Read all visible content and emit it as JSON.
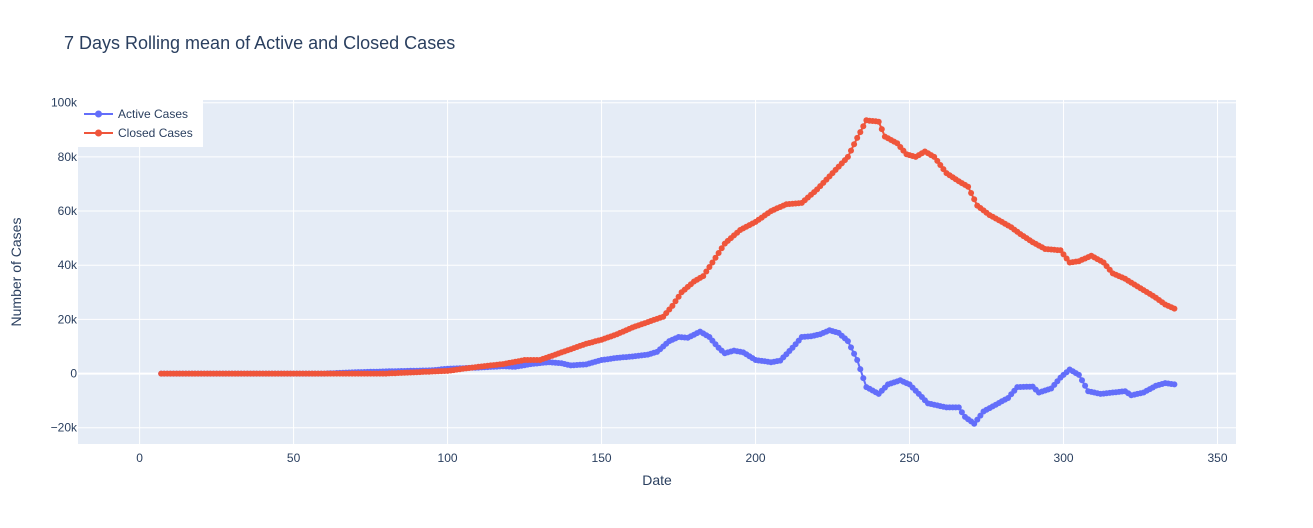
{
  "chart_data": {
    "type": "line",
    "title": "7 Days Rolling mean of Active and Closed Cases",
    "xlabel": "Date",
    "ylabel": "Number of Cases",
    "xlim": [
      -20,
      356
    ],
    "ylim": [
      -26000,
      101000
    ],
    "x_ticks": [
      0,
      50,
      100,
      150,
      200,
      250,
      300,
      350
    ],
    "x_tick_labels": [
      "0",
      "50",
      "100",
      "150",
      "200",
      "250",
      "300",
      "350"
    ],
    "y_ticks": [
      -20000,
      0,
      20000,
      40000,
      60000,
      80000,
      100000
    ],
    "y_tick_labels": [
      "−20k",
      "0",
      "20k",
      "40k",
      "60k",
      "80k",
      "100k"
    ],
    "grid": true,
    "legend_position": "top-left",
    "plot_background": "#e5ecf6",
    "series": [
      {
        "name": "Active Cases",
        "color": "#636efa",
        "mode": "lines+markers",
        "keypoints": [
          [
            7,
            0
          ],
          [
            60,
            0
          ],
          [
            70,
            500
          ],
          [
            80,
            800
          ],
          [
            95,
            1200
          ],
          [
            100,
            1800
          ],
          [
            110,
            2200
          ],
          [
            118,
            2700
          ],
          [
            122,
            2500
          ],
          [
            127,
            3500
          ],
          [
            133,
            4200
          ],
          [
            137,
            3800
          ],
          [
            140,
            3000
          ],
          [
            145,
            3400
          ],
          [
            150,
            5000
          ],
          [
            155,
            5800
          ],
          [
            160,
            6300
          ],
          [
            165,
            7000
          ],
          [
            168,
            8000
          ],
          [
            172,
            12000
          ],
          [
            175,
            13500
          ],
          [
            178,
            13200
          ],
          [
            182,
            15500
          ],
          [
            185,
            13500
          ],
          [
            188,
            9500
          ],
          [
            190,
            7500
          ],
          [
            193,
            8500
          ],
          [
            196,
            7800
          ],
          [
            200,
            5000
          ],
          [
            205,
            4200
          ],
          [
            208,
            4800
          ],
          [
            212,
            9500
          ],
          [
            215,
            13500
          ],
          [
            218,
            13800
          ],
          [
            221,
            14500
          ],
          [
            224,
            16000
          ],
          [
            227,
            15000
          ],
          [
            230,
            12000
          ],
          [
            233,
            5000
          ],
          [
            236,
            -5000
          ],
          [
            240,
            -7500
          ],
          [
            243,
            -4000
          ],
          [
            247,
            -2500
          ],
          [
            250,
            -4000
          ],
          [
            253,
            -7500
          ],
          [
            256,
            -11000
          ],
          [
            262,
            -12500
          ],
          [
            266,
            -12500
          ],
          [
            268,
            -16000
          ],
          [
            271,
            -18500
          ],
          [
            274,
            -14000
          ],
          [
            278,
            -11500
          ],
          [
            282,
            -9000
          ],
          [
            285,
            -5000
          ],
          [
            290,
            -4800
          ],
          [
            292,
            -7000
          ],
          [
            296,
            -5500
          ],
          [
            299,
            -1500
          ],
          [
            302,
            1500
          ],
          [
            305,
            -500
          ],
          [
            308,
            -6500
          ],
          [
            312,
            -7500
          ],
          [
            316,
            -7000
          ],
          [
            320,
            -6500
          ],
          [
            322,
            -8000
          ],
          [
            326,
            -7000
          ],
          [
            330,
            -4500
          ],
          [
            333,
            -3500
          ],
          [
            336,
            -4000
          ]
        ]
      },
      {
        "name": "Closed Cases",
        "color": "#ef553b",
        "mode": "lines+markers",
        "keypoints": [
          [
            7,
            0
          ],
          [
            80,
            0
          ],
          [
            100,
            1000
          ],
          [
            110,
            2500
          ],
          [
            118,
            3500
          ],
          [
            125,
            5000
          ],
          [
            130,
            5000
          ],
          [
            135,
            7000
          ],
          [
            140,
            9000
          ],
          [
            145,
            11000
          ],
          [
            150,
            12500
          ],
          [
            155,
            14500
          ],
          [
            160,
            17000
          ],
          [
            165,
            19000
          ],
          [
            170,
            21000
          ],
          [
            173,
            25000
          ],
          [
            176,
            30000
          ],
          [
            180,
            34000
          ],
          [
            183,
            36000
          ],
          [
            186,
            41000
          ],
          [
            190,
            48000
          ],
          [
            195,
            53000
          ],
          [
            200,
            56000
          ],
          [
            205,
            60000
          ],
          [
            210,
            62500
          ],
          [
            215,
            63000
          ],
          [
            220,
            68000
          ],
          [
            225,
            74000
          ],
          [
            230,
            80000
          ],
          [
            233,
            87000
          ],
          [
            236,
            93500
          ],
          [
            240,
            93000
          ],
          [
            242,
            87500
          ],
          [
            246,
            85000
          ],
          [
            249,
            81000
          ],
          [
            252,
            80000
          ],
          [
            255,
            82000
          ],
          [
            258,
            80000
          ],
          [
            262,
            74000
          ],
          [
            266,
            71000
          ],
          [
            269,
            69000
          ],
          [
            272,
            62000
          ],
          [
            276,
            58500
          ],
          [
            280,
            56000
          ],
          [
            283,
            54000
          ],
          [
            286,
            51500
          ],
          [
            290,
            48500
          ],
          [
            294,
            46000
          ],
          [
            299,
            45500
          ],
          [
            302,
            41000
          ],
          [
            305,
            41500
          ],
          [
            309,
            43500
          ],
          [
            313,
            41000
          ],
          [
            316,
            37000
          ],
          [
            320,
            35000
          ],
          [
            325,
            31500
          ],
          [
            330,
            28000
          ],
          [
            333,
            25500
          ],
          [
            336,
            24000
          ]
        ]
      }
    ]
  }
}
